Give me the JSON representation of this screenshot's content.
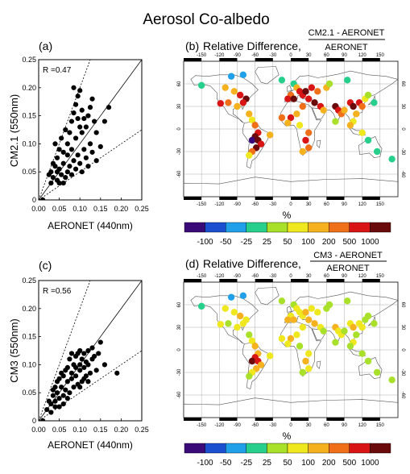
{
  "figure_title": "Aerosol Co-albedo",
  "colors": {
    "colorbar": [
      "#3a0a78",
      "#1a4fd0",
      "#1fa0e8",
      "#26d08c",
      "#a8e02a",
      "#f0e81e",
      "#f5b21e",
      "#f0701a",
      "#d81414",
      "#6a0a0a"
    ],
    "scatter_point": "#000000",
    "land_outline": "#555555",
    "grid": "#999999"
  },
  "panels": {
    "a": {
      "label": "(a)",
      "r_text": "R =0.47"
    },
    "b": {
      "label": "(b)",
      "title": "Relative Difference,",
      "numerator": "CM2.1 - AERONET",
      "denominator": "AERONET"
    },
    "c": {
      "label": "(c)",
      "r_text": "R =0.56"
    },
    "d": {
      "label": "(d)",
      "title": "Relative Difference,",
      "numerator": "CM3 - AERONET",
      "denominator": "AERONET"
    }
  },
  "colorbar": {
    "unit": "%",
    "ticks": [
      "-100",
      "-50",
      "-25",
      "25",
      "50",
      "100",
      "200",
      "500",
      "1000"
    ]
  },
  "map_axes": {
    "lon_ticks": [
      "-150",
      "-120",
      "-90",
      "-60",
      "-30",
      "0",
      "30",
      "60",
      "90",
      "120",
      "150"
    ],
    "lat_ticks": [
      "60",
      "30",
      "0",
      "-30",
      "-60"
    ]
  },
  "chart_data": [
    {
      "type": "scatter",
      "panel": "a",
      "title": "",
      "xlabel": "AERONET  (440nm)",
      "ylabel": "CM2.1  (550nm)",
      "xlim": [
        0,
        0.25
      ],
      "ylim": [
        0,
        0.25
      ],
      "xticks": [
        "0.00",
        "0.05",
        "0.10",
        "0.15",
        "0.20",
        "0.25"
      ],
      "yticks": [
        "0",
        "0.05",
        "0.10",
        "0.15",
        "0.20",
        "0.25"
      ],
      "annotation": "R =0.47",
      "reference_lines": [
        "1:1 solid",
        "2:1 dotted",
        "1:2 dotted"
      ],
      "points": [
        [
          0.01,
          0
        ],
        [
          0.025,
          0.045
        ],
        [
          0.03,
          0.05
        ],
        [
          0.035,
          0.04
        ],
        [
          0.04,
          0.06
        ],
        [
          0.045,
          0.035
        ],
        [
          0.05,
          0.055
        ],
        [
          0.055,
          0.045
        ],
        [
          0.06,
          0.065
        ],
        [
          0.065,
          0.04
        ],
        [
          0.07,
          0.05
        ],
        [
          0.075,
          0.06
        ],
        [
          0.08,
          0.045
        ],
        [
          0.085,
          0.07
        ],
        [
          0.09,
          0.055
        ],
        [
          0.095,
          0.08
        ],
        [
          0.1,
          0.065
        ],
        [
          0.105,
          0.05
        ],
        [
          0.11,
          0.09
        ],
        [
          0.115,
          0.075
        ],
        [
          0.12,
          0.06
        ],
        [
          0.125,
          0.1
        ],
        [
          0.13,
          0.085
        ],
        [
          0.14,
          0.07
        ],
        [
          0.15,
          0.095
        ],
        [
          0.06,
          0.085
        ],
        [
          0.07,
          0.1
        ],
        [
          0.075,
          0.12
        ],
        [
          0.08,
          0.14
        ],
        [
          0.085,
          0.155
        ],
        [
          0.09,
          0.17
        ],
        [
          0.095,
          0.185
        ],
        [
          0.1,
          0.195
        ],
        [
          0.105,
          0.16
        ],
        [
          0.11,
          0.145
        ],
        [
          0.115,
          0.13
        ],
        [
          0.12,
          0.15
        ],
        [
          0.125,
          0.165
        ],
        [
          0.13,
          0.18
        ],
        [
          0.135,
          0.14
        ],
        [
          0.14,
          0.12
        ],
        [
          0.16,
          0.14
        ],
        [
          0.17,
          0.165
        ],
        [
          0.05,
          0.09
        ],
        [
          0.045,
          0.075
        ],
        [
          0.035,
          0.065
        ],
        [
          0.04,
          0.1
        ],
        [
          0.055,
          0.11
        ],
        [
          0.065,
          0.125
        ],
        [
          0.09,
          0.11
        ],
        [
          0.1,
          0.13
        ],
        [
          0.105,
          0.12
        ],
        [
          0.095,
          0.145
        ],
        [
          0.085,
          0.2
        ],
        [
          0.08,
          0.09
        ],
        [
          0.07,
          0.08
        ],
        [
          0.06,
          0.03
        ],
        [
          0.05,
          0.03
        ],
        [
          0.045,
          0.05
        ],
        [
          0.03,
          0.03
        ]
      ]
    },
    {
      "type": "scatter",
      "panel": "c",
      "title": "",
      "xlabel": "AERONET  (440nm)",
      "ylabel": "CM3  (550nm)",
      "xlim": [
        0,
        0.25
      ],
      "ylim": [
        0,
        0.25
      ],
      "xticks": [
        "0.00",
        "0.05",
        "0.10",
        "0.15",
        "0.20",
        "0.25"
      ],
      "yticks": [
        "0",
        "0.05",
        "0.10",
        "0.15",
        "0.20",
        "0.25"
      ],
      "annotation": "R =0.56",
      "reference_lines": [
        "1:1 solid",
        "2:1 dotted",
        "1:2 dotted"
      ],
      "points": [
        [
          0.01,
          0
        ],
        [
          0.02,
          0.02
        ],
        [
          0.025,
          0.035
        ],
        [
          0.03,
          0.03
        ],
        [
          0.035,
          0.045
        ],
        [
          0.04,
          0.025
        ],
        [
          0.045,
          0.05
        ],
        [
          0.05,
          0.04
        ],
        [
          0.055,
          0.06
        ],
        [
          0.06,
          0.045
        ],
        [
          0.065,
          0.055
        ],
        [
          0.07,
          0.07
        ],
        [
          0.075,
          0.05
        ],
        [
          0.08,
          0.075
        ],
        [
          0.085,
          0.06
        ],
        [
          0.09,
          0.08
        ],
        [
          0.095,
          0.065
        ],
        [
          0.1,
          0.09
        ],
        [
          0.105,
          0.07
        ],
        [
          0.11,
          0.095
        ],
        [
          0.115,
          0.08
        ],
        [
          0.12,
          0.1
        ],
        [
          0.125,
          0.085
        ],
        [
          0.13,
          0.11
        ],
        [
          0.14,
          0.09
        ],
        [
          0.15,
          0.14
        ],
        [
          0.06,
          0.08
        ],
        [
          0.07,
          0.095
        ],
        [
          0.075,
          0.11
        ],
        [
          0.08,
          0.12
        ],
        [
          0.085,
          0.1
        ],
        [
          0.09,
          0.115
        ],
        [
          0.095,
          0.12
        ],
        [
          0.1,
          0.125
        ],
        [
          0.105,
          0.11
        ],
        [
          0.11,
          0.12
        ],
        [
          0.115,
          0.105
        ],
        [
          0.12,
          0.125
        ],
        [
          0.13,
          0.13
        ],
        [
          0.135,
          0.115
        ],
        [
          0.145,
          0.12
        ],
        [
          0.16,
          0.1
        ],
        [
          0.19,
          0.085
        ],
        [
          0.05,
          0.075
        ],
        [
          0.045,
          0.07
        ],
        [
          0.04,
          0.06
        ],
        [
          0.035,
          0.055
        ],
        [
          0.055,
          0.085
        ],
        [
          0.065,
          0.09
        ],
        [
          0.1,
          0.1
        ],
        [
          0.09,
          0.095
        ],
        [
          0.08,
          0.085
        ],
        [
          0.07,
          0.04
        ],
        [
          0.06,
          0.03
        ],
        [
          0.05,
          0.025
        ],
        [
          0.03,
          0.015
        ],
        [
          0.04,
          0.035
        ],
        [
          0.11,
          0.075
        ],
        [
          0.12,
          0.07
        ],
        [
          0.1,
          0.06
        ]
      ]
    },
    {
      "type": "map",
      "panel": "b",
      "title": "Relative Difference, CM2.1 - AERONET / AERONET",
      "unit": "%",
      "color_bins": [
        "-100",
        "-50",
        "-25",
        "25",
        "50",
        "100",
        "200",
        "500",
        "1000"
      ],
      "sites": [
        [
          -150,
          58,
          3
        ],
        [
          -100,
          70,
          2
        ],
        [
          -80,
          72,
          2
        ],
        [
          -110,
          55,
          6
        ],
        [
          -95,
          50,
          6
        ],
        [
          -85,
          45,
          8
        ],
        [
          -75,
          40,
          9
        ],
        [
          -80,
          35,
          8
        ],
        [
          -105,
          35,
          7
        ],
        [
          -118,
          34,
          8
        ],
        [
          -90,
          30,
          6
        ],
        [
          -70,
          20,
          6
        ],
        [
          -65,
          12,
          5
        ],
        [
          -60,
          5,
          7
        ],
        [
          -55,
          -5,
          8
        ],
        [
          -60,
          -10,
          9
        ],
        [
          -65,
          -15,
          10
        ],
        [
          -55,
          -15,
          9
        ],
        [
          -50,
          -20,
          8
        ],
        [
          -58,
          -25,
          9
        ],
        [
          -65,
          -30,
          7
        ],
        [
          -70,
          -35,
          5
        ],
        [
          -35,
          -8,
          6
        ],
        [
          -15,
          65,
          3
        ],
        [
          5,
          60,
          3
        ],
        [
          10,
          55,
          6
        ],
        [
          15,
          50,
          8
        ],
        [
          0,
          45,
          7
        ],
        [
          -5,
          40,
          8
        ],
        [
          5,
          40,
          9
        ],
        [
          20,
          45,
          8
        ],
        [
          25,
          50,
          9
        ],
        [
          35,
          55,
          8
        ],
        [
          45,
          50,
          7
        ],
        [
          60,
          55,
          6
        ],
        [
          30,
          40,
          8
        ],
        [
          40,
          35,
          9
        ],
        [
          50,
          30,
          8
        ],
        [
          55,
          25,
          6
        ],
        [
          20,
          30,
          7
        ],
        [
          10,
          20,
          6
        ],
        [
          0,
          15,
          8
        ],
        [
          -15,
          15,
          7
        ],
        [
          -5,
          8,
          6
        ],
        [
          15,
          5,
          5
        ],
        [
          30,
          -5,
          7
        ],
        [
          25,
          -15,
          8
        ],
        [
          30,
          -25,
          7
        ],
        [
          20,
          -30,
          6
        ],
        [
          75,
          30,
          9
        ],
        [
          80,
          25,
          8
        ],
        [
          85,
          20,
          7
        ],
        [
          90,
          25,
          6
        ],
        [
          100,
          35,
          8
        ],
        [
          105,
          30,
          9
        ],
        [
          115,
          35,
          8
        ],
        [
          120,
          30,
          7
        ],
        [
          125,
          40,
          5
        ],
        [
          130,
          45,
          4
        ],
        [
          140,
          35,
          3
        ],
        [
          110,
          20,
          6
        ],
        [
          105,
          10,
          5
        ],
        [
          100,
          5,
          6
        ],
        [
          120,
          -5,
          5
        ],
        [
          130,
          -15,
          3
        ],
        [
          145,
          -30,
          3
        ],
        [
          170,
          -40,
          3
        ],
        [
          75,
          10,
          4
        ],
        [
          65,
          60,
          4
        ],
        [
          95,
          65,
          3
        ]
      ]
    },
    {
      "type": "map",
      "panel": "d",
      "title": "Relative Difference, CM3 - AERONET / AERONET",
      "unit": "%",
      "color_bins": [
        "-100",
        "-50",
        "-25",
        "25",
        "50",
        "100",
        "200",
        "500",
        "1000"
      ],
      "sites": [
        [
          -150,
          58,
          3
        ],
        [
          -100,
          70,
          2
        ],
        [
          -80,
          72,
          2
        ],
        [
          -110,
          55,
          5
        ],
        [
          -95,
          50,
          5
        ],
        [
          -85,
          45,
          6
        ],
        [
          -75,
          40,
          5
        ],
        [
          -80,
          35,
          5
        ],
        [
          -105,
          35,
          4
        ],
        [
          -118,
          34,
          5
        ],
        [
          -90,
          30,
          5
        ],
        [
          -70,
          20,
          4
        ],
        [
          -65,
          12,
          5
        ],
        [
          -60,
          5,
          6
        ],
        [
          -55,
          -5,
          6
        ],
        [
          -60,
          -10,
          8
        ],
        [
          -65,
          -15,
          9
        ],
        [
          -55,
          -15,
          8
        ],
        [
          -50,
          -20,
          6
        ],
        [
          -58,
          -25,
          6
        ],
        [
          -65,
          -30,
          5
        ],
        [
          -70,
          -35,
          4
        ],
        [
          -35,
          -8,
          5
        ],
        [
          -15,
          65,
          4
        ],
        [
          5,
          60,
          4
        ],
        [
          10,
          55,
          5
        ],
        [
          15,
          50,
          5
        ],
        [
          0,
          45,
          5
        ],
        [
          -5,
          40,
          6
        ],
        [
          5,
          40,
          6
        ],
        [
          20,
          45,
          5
        ],
        [
          25,
          50,
          6
        ],
        [
          35,
          55,
          5
        ],
        [
          45,
          50,
          5
        ],
        [
          60,
          55,
          4
        ],
        [
          30,
          40,
          6
        ],
        [
          40,
          35,
          6
        ],
        [
          50,
          30,
          5
        ],
        [
          55,
          25,
          4
        ],
        [
          20,
          30,
          5
        ],
        [
          10,
          20,
          5
        ],
        [
          0,
          15,
          6
        ],
        [
          -15,
          15,
          5
        ],
        [
          -5,
          8,
          5
        ],
        [
          15,
          5,
          4
        ],
        [
          30,
          -5,
          5
        ],
        [
          25,
          -15,
          6
        ],
        [
          30,
          -25,
          5
        ],
        [
          20,
          -30,
          4
        ],
        [
          75,
          30,
          6
        ],
        [
          80,
          25,
          5
        ],
        [
          85,
          20,
          5
        ],
        [
          90,
          25,
          4
        ],
        [
          100,
          35,
          5
        ],
        [
          105,
          30,
          6
        ],
        [
          115,
          35,
          5
        ],
        [
          120,
          30,
          5
        ],
        [
          125,
          40,
          4
        ],
        [
          130,
          45,
          4
        ],
        [
          140,
          35,
          4
        ],
        [
          110,
          20,
          4
        ],
        [
          105,
          10,
          5
        ],
        [
          100,
          5,
          4
        ],
        [
          120,
          -5,
          4
        ],
        [
          130,
          -15,
          4
        ],
        [
          145,
          -30,
          4
        ],
        [
          170,
          -40,
          4
        ],
        [
          75,
          10,
          4
        ],
        [
          65,
          60,
          4
        ],
        [
          95,
          65,
          4
        ]
      ]
    }
  ]
}
